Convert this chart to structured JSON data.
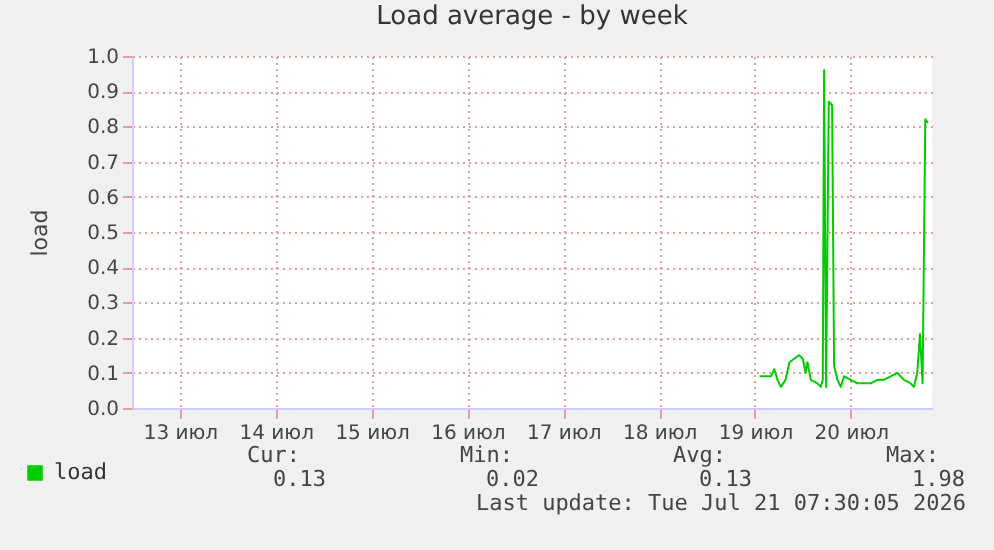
{
  "chart_data": {
    "type": "line",
    "title": "Load average - by week",
    "ylabel": "load",
    "x": [
      "2026-07-19T13:09",
      "2026-07-19T16:00",
      "2026-07-19T16:49",
      "2026-07-19T17:39",
      "2026-07-19T18:29",
      "2026-07-19T19:39",
      "2026-07-19T20:39",
      "2026-07-19T21:49",
      "2026-07-19T22:59",
      "2026-07-19T23:59",
      "2026-07-20T00:39",
      "2026-07-20T01:09",
      "2026-07-20T01:59",
      "2026-07-20T03:39",
      "2026-07-20T04:29",
      "2026-07-20T04:59",
      "2026-07-20T05:19",
      "2026-07-20T05:49",
      "2026-07-20T06:29",
      "2026-07-20T07:19",
      "2026-07-20T07:49",
      "2026-07-20T08:39",
      "2026-07-20T09:29",
      "2026-07-20T10:19",
      "2026-07-20T11:59",
      "2026-07-20T13:39",
      "2026-07-20T15:19",
      "2026-07-20T16:59",
      "2026-07-20T18:39",
      "2026-07-20T20:19",
      "2026-07-20T21:59",
      "2026-07-20T23:39",
      "2026-07-21T01:19",
      "2026-07-21T02:59",
      "2026-07-21T03:49",
      "2026-07-21T04:39",
      "2026-07-21T05:19",
      "2026-07-21T05:59",
      "2026-07-21T06:39",
      "2026-07-21T07:19"
    ],
    "series": [
      {
        "name": "load",
        "color": "#00cc00",
        "values": [
          0.09,
          0.09,
          0.11,
          0.08,
          0.06,
          0.08,
          0.13,
          0.14,
          0.15,
          0.14,
          0.1,
          0.13,
          0.08,
          0.07,
          0.06,
          0.08,
          0.96,
          0.06,
          0.87,
          0.86,
          0.12,
          0.08,
          0.06,
          0.09,
          0.08,
          0.07,
          0.07,
          0.07,
          0.08,
          0.08,
          0.09,
          0.1,
          0.08,
          0.07,
          0.06,
          0.1,
          0.21,
          0.07,
          0.82,
          0.81
        ]
      }
    ],
    "xlim": [
      "2026-07-13T00:00",
      "2026-07-21T08:20"
    ],
    "xticks": [
      {
        "value": "2026-07-13T12:00",
        "label": "13 июл"
      },
      {
        "value": "2026-07-14T12:00",
        "label": "14 июл"
      },
      {
        "value": "2026-07-15T12:00",
        "label": "15 июл"
      },
      {
        "value": "2026-07-16T12:00",
        "label": "16 июл"
      },
      {
        "value": "2026-07-17T12:00",
        "label": "17 июл"
      },
      {
        "value": "2026-07-18T12:00",
        "label": "18 июл"
      },
      {
        "value": "2026-07-19T12:00",
        "label": "19 июл"
      },
      {
        "value": "2026-07-20T12:00",
        "label": "20 июл"
      }
    ],
    "ylim": [
      0,
      1.0
    ],
    "yticks": [
      {
        "value": 0,
        "label": "0.0"
      },
      {
        "value": 0.1,
        "label": "0.1"
      },
      {
        "value": 0.2,
        "label": "0.2"
      },
      {
        "value": 0.3,
        "label": "0.3"
      },
      {
        "value": 0.4,
        "label": "0.4"
      },
      {
        "value": 0.5,
        "label": "0.5"
      },
      {
        "value": 0.6,
        "label": "0.6"
      },
      {
        "value": 0.7,
        "label": "0.7"
      },
      {
        "value": 0.8,
        "label": "0.8"
      },
      {
        "value": 0.9,
        "label": "0.9"
      },
      {
        "value": 1.0,
        "label": "1.0"
      }
    ],
    "grid": true,
    "legend": "bottom left",
    "marker": "none",
    "line_style": "solid",
    "annotations": [
      "Cur:",
      "Min:",
      "Avg:",
      "Max:",
      "0.13",
      "0.02",
      "0.13",
      "1.98",
      "Last update: Tue Jul 21 07:30:05 2026"
    ]
  }
}
